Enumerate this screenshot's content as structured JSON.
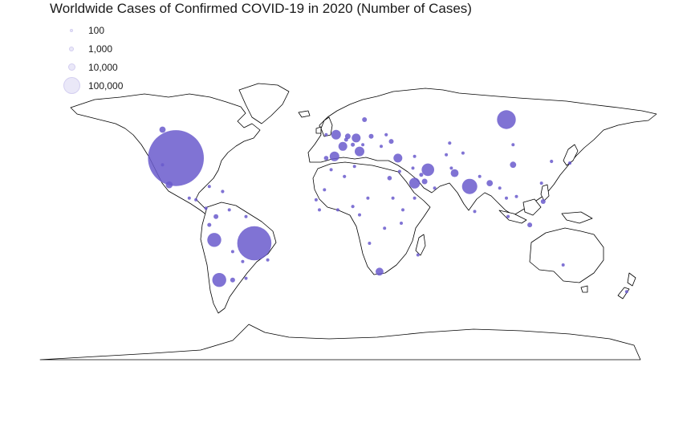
{
  "title": "Worldwide Cases of Confirmed COVID-19 in 2020 (Number of Cases)",
  "legend": {
    "items": [
      {
        "label": "100",
        "value": 100
      },
      {
        "label": "1,000",
        "value": 1000
      },
      {
        "label": "10,000",
        "value": 10000
      },
      {
        "label": "100,000",
        "value": 100000
      }
    ]
  },
  "colors": {
    "bubble": "#6a5acd",
    "land_stroke": "#000000",
    "land_fill": "#ffffff"
  },
  "chart_data": {
    "type": "bubble-map",
    "title": "Worldwide Cases of Confirmed COVID-19 in 2020 (Number of Cases)",
    "size_scale": "number of cases",
    "points": [
      {
        "lon": -98,
        "lat": 39,
        "cases": 400000
      },
      {
        "lon": -51,
        "lat": -12,
        "cases": 150000
      },
      {
        "lon": 100,
        "lat": 62,
        "cases": 45000
      },
      {
        "lon": -72,
        "lat": -34,
        "cases": 25000
      },
      {
        "lon": -75,
        "lat": -10,
        "cases": 25000
      },
      {
        "lon": 78,
        "lat": 22,
        "cases": 30000
      },
      {
        "lon": 53,
        "lat": 32,
        "cases": 20000
      },
      {
        "lon": 45,
        "lat": 24,
        "cases": 15000
      },
      {
        "lon": 24,
        "lat": -29,
        "cases": 8000
      },
      {
        "lon": -3,
        "lat": 40,
        "cases": 12000
      },
      {
        "lon": -2,
        "lat": 53,
        "cases": 12000
      },
      {
        "lon": 12,
        "lat": 43,
        "cases": 12000
      },
      {
        "lon": 10,
        "lat": 51,
        "cases": 10000
      },
      {
        "lon": 2,
        "lat": 46,
        "cases": 10000
      },
      {
        "lon": 35,
        "lat": 39,
        "cases": 10000
      },
      {
        "lon": 69,
        "lat": 30,
        "cases": 8000
      },
      {
        "lon": 104,
        "lat": 35,
        "cases": 5000
      },
      {
        "lon": -102,
        "lat": 23,
        "cases": 6000
      },
      {
        "lon": -106,
        "lat": 56,
        "cases": 5000
      },
      {
        "lon": 90,
        "lat": 24,
        "cases": 5000
      },
      {
        "lon": 5,
        "lat": 52,
        "cases": 4000
      },
      {
        "lon": 19,
        "lat": 52,
        "cases": 3000
      },
      {
        "lon": 31,
        "lat": 49,
        "cases": 3000
      },
      {
        "lon": 15,
        "lat": 62,
        "cases": 3000
      },
      {
        "lon": 51,
        "lat": 25,
        "cases": 4000
      },
      {
        "lon": 114,
        "lat": -1,
        "cases": 3000
      },
      {
        "lon": 122,
        "lat": 13,
        "cases": 3000
      },
      {
        "lon": -64,
        "lat": -34,
        "cases": 3000
      },
      {
        "lon": -74,
        "lat": 4,
        "cases": 3000
      },
      {
        "lon": 30,
        "lat": 27,
        "cases": 2500
      },
      {
        "lon": 8,
        "lat": 47,
        "cases": 2000
      },
      {
        "lon": 4,
        "lat": 50,
        "cases": 2000
      },
      {
        "lon": -8,
        "lat": 39,
        "cases": 2500
      },
      {
        "lon": 49,
        "lat": 29,
        "cases": 2000
      },
      {
        "lon": 101,
        "lat": 4,
        "cases": 1500
      },
      {
        "lon": 100,
        "lat": 15,
        "cases": 1200
      },
      {
        "lon": -78,
        "lat": -1,
        "cases": 2000
      },
      {
        "lon": -80,
        "lat": 9,
        "cases": 1500
      },
      {
        "lon": -70,
        "lat": 19,
        "cases": 1500
      },
      {
        "lon": 8,
        "lat": 10,
        "cases": 1500
      },
      {
        "lon": 3,
        "lat": 28,
        "cases": 1500
      },
      {
        "lon": 28,
        "lat": 53,
        "cases": 1500
      },
      {
        "lon": 66,
        "lat": 48,
        "cases": 1500
      },
      {
        "lon": 127,
        "lat": 37,
        "cases": 1500
      },
      {
        "lon": 138,
        "lat": 36,
        "cases": 1500
      },
      {
        "lon": 14,
        "lat": 47,
        "cases": 1200
      },
      {
        "lon": 25,
        "lat": 46,
        "cases": 1200
      },
      {
        "lon": -8,
        "lat": 53,
        "cases": 1200
      },
      {
        "lon": 64,
        "lat": 41,
        "cases": 1000
      },
      {
        "lon": 74,
        "lat": 42,
        "cases": 800
      },
      {
        "lon": 45,
        "lat": 40,
        "cases": 1000
      },
      {
        "lon": 44,
        "lat": 33,
        "cases": 1200
      },
      {
        "lon": 38,
        "lat": 8,
        "cases": 800
      },
      {
        "lon": 45,
        "lat": 15,
        "cases": 800
      },
      {
        "lon": -1,
        "lat": 8,
        "cases": 800
      },
      {
        "lon": -14,
        "lat": 14,
        "cases": 600
      },
      {
        "lon": -5,
        "lat": 32,
        "cases": 800
      },
      {
        "lon": -86,
        "lat": 14,
        "cases": 800
      },
      {
        "lon": -90,
        "lat": 15,
        "cases": 800
      },
      {
        "lon": -64,
        "lat": -17,
        "cases": 900
      },
      {
        "lon": -58,
        "lat": -23,
        "cases": 600
      },
      {
        "lon": -56,
        "lat": -33,
        "cases": 500
      },
      {
        "lon": 121,
        "lat": 24,
        "cases": 400
      },
      {
        "lon": 134,
        "lat": -25,
        "cases": 600
      },
      {
        "lon": 172,
        "lat": -41,
        "cases": 400
      },
      {
        "lon": 37,
        "lat": 0,
        "cases": 600
      },
      {
        "lon": 32,
        "lat": 15,
        "cases": 500
      },
      {
        "lon": 47,
        "lat": -19,
        "cases": 400
      },
      {
        "lon": 18,
        "lat": -12,
        "cases": 300
      },
      {
        "lon": 27,
        "lat": -3,
        "cases": 400
      },
      {
        "lon": 12,
        "lat": 5,
        "cases": 500
      },
      {
        "lon": 9,
        "lat": 34,
        "cases": 400
      },
      {
        "lon": 17,
        "lat": 15,
        "cases": 200
      },
      {
        "lon": 57,
        "lat": 21,
        "cases": 500
      },
      {
        "lon": 36,
        "lat": 31,
        "cases": 700
      },
      {
        "lon": 67,
        "lat": 33,
        "cases": 500
      },
      {
        "lon": 84,
        "lat": 28,
        "cases": 400
      },
      {
        "lon": 81,
        "lat": 7,
        "cases": 300
      },
      {
        "lon": 96,
        "lat": 21,
        "cases": 300
      },
      {
        "lon": 106,
        "lat": 16,
        "cases": 200
      },
      {
        "lon": 104,
        "lat": 47,
        "cases": 200
      },
      {
        "lon": -78,
        "lat": 22,
        "cases": 500
      },
      {
        "lon": -66,
        "lat": 8,
        "cases": 500
      },
      {
        "lon": -56,
        "lat": 4,
        "cases": 200
      },
      {
        "lon": -106,
        "lat": 35,
        "cases": 400
      },
      {
        "lon": -43,
        "lat": -22,
        "cases": 500
      },
      {
        "lon": -9,
        "lat": 20,
        "cases": 200
      },
      {
        "lon": -12,
        "lat": 8,
        "cases": 200
      }
    ]
  }
}
